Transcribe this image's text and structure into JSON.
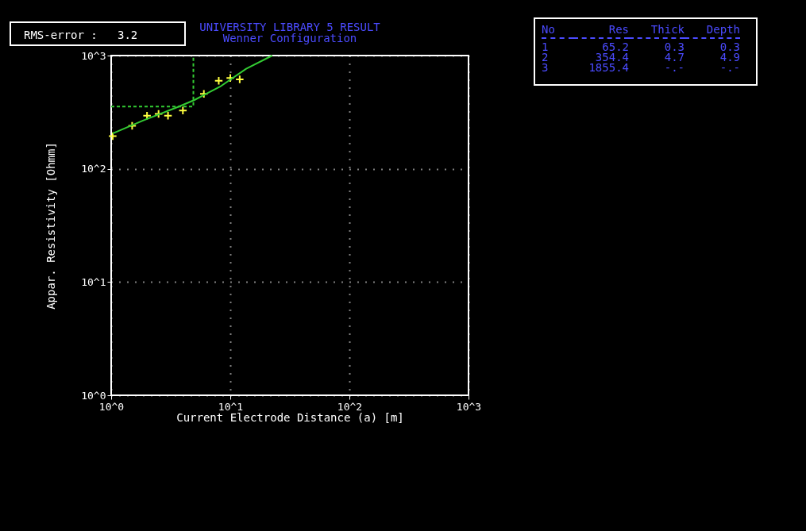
{
  "chart_data": {
    "type": "scatter",
    "title": "UNIVERSITY LIBRARY 5 RESULT",
    "subtitle": "Wenner Configuration",
    "xlabel": "Current Electrode Distance (a) [m]",
    "ylabel": "Appar. Resistivity [Ohmm]",
    "log": "xy",
    "xlim": [
      1,
      1000
    ],
    "ylim": [
      1,
      1000
    ],
    "xticks": [
      {
        "value": 1,
        "label": "10^0"
      },
      {
        "value": 10,
        "label": "10^1"
      },
      {
        "value": 100,
        "label": "10^2"
      },
      {
        "value": 1000,
        "label": "10^3"
      }
    ],
    "yticks": [
      {
        "value": 1,
        "label": "10^0"
      },
      {
        "value": 10,
        "label": "10^1"
      },
      {
        "value": 100,
        "label": "10^2"
      },
      {
        "value": 1000,
        "label": "10^3"
      }
    ],
    "grid": true,
    "series": [
      {
        "marker": "cross",
        "color": "#ffff40",
        "x": [
          1.03,
          1.5,
          2,
          2.5,
          3,
          4,
          6,
          8,
          10,
          12
        ],
        "values": [
          194,
          240,
          295,
          305,
          295,
          327,
          459,
          600,
          634,
          617
        ]
      },
      {
        "type": "line",
        "marker": "none",
        "color": "#33cc33",
        "x": [
          1.03,
          1.85,
          3.6,
          5,
          8.2,
          13.6,
          22.5
        ],
        "values": [
          205,
          267,
          350,
          405,
          531,
          764,
          1000
        ]
      },
      {
        "type": "line",
        "marker": "none",
        "line_style": "dashed",
        "color": "#33cc33",
        "x": [
          1,
          4.9,
          4.9
        ],
        "values": [
          354.4,
          354.4,
          1000
        ]
      }
    ],
    "annotations": [
      "RMS-error :   3.2",
      "No",
      "Res",
      "Thick",
      "Depth",
      "1",
      "65.2",
      "0.3",
      "0.3",
      "2",
      "354.4",
      "4.7",
      "4.9",
      "3",
      "1855.4",
      "-.-",
      "-.-"
    ]
  }
}
